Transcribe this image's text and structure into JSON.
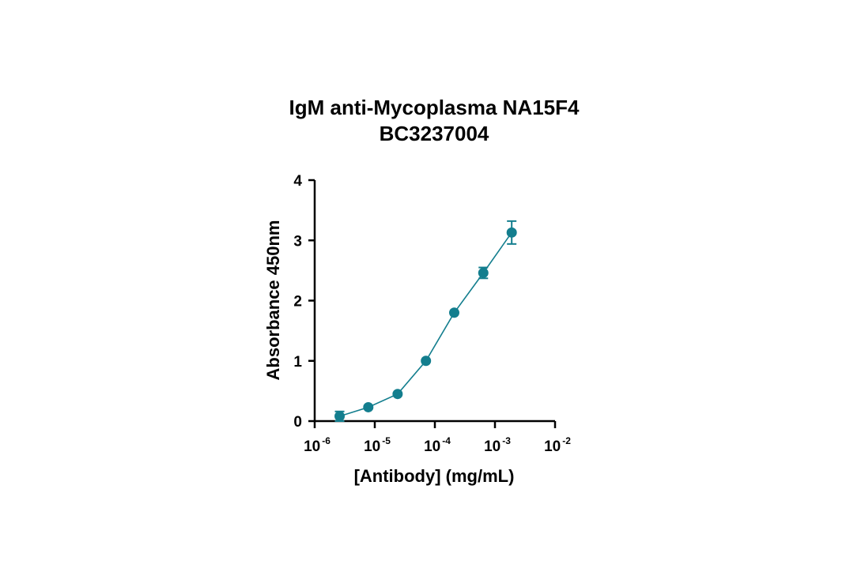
{
  "chart_data": {
    "type": "scatter",
    "title": [
      "IgM anti-Mycoplasma NA15F4",
      "BC3237004"
    ],
    "xlabel": "[Antibody] (mg/mL)",
    "ylabel": "Absorbance 450nm",
    "x_scale": "log",
    "xlim": [
      1e-06,
      0.01
    ],
    "ylim": [
      0,
      4
    ],
    "x_ticks": [
      {
        "base": "10",
        "exp": "-6",
        "value": 1e-06
      },
      {
        "base": "10",
        "exp": "-5",
        "value": 1e-05
      },
      {
        "base": "10",
        "exp": "-4",
        "value": 0.0001
      },
      {
        "base": "10",
        "exp": "-3",
        "value": 0.001
      },
      {
        "base": "10",
        "exp": "-2",
        "value": 0.01
      }
    ],
    "y_ticks": [
      "0",
      "1",
      "2",
      "3",
      "4"
    ],
    "grid": false,
    "color": "#137e8e",
    "series": [
      {
        "x": [
          2.6e-06,
          7.8e-06,
          2.4e-05,
          7.1e-05,
          0.00021,
          0.00064,
          0.0019
        ],
        "y": [
          0.08,
          0.23,
          0.45,
          1.0,
          1.8,
          2.46,
          3.13
        ],
        "y_err": [
          0.08,
          0.02,
          0.02,
          0.02,
          0.02,
          0.09,
          0.19
        ]
      }
    ]
  }
}
